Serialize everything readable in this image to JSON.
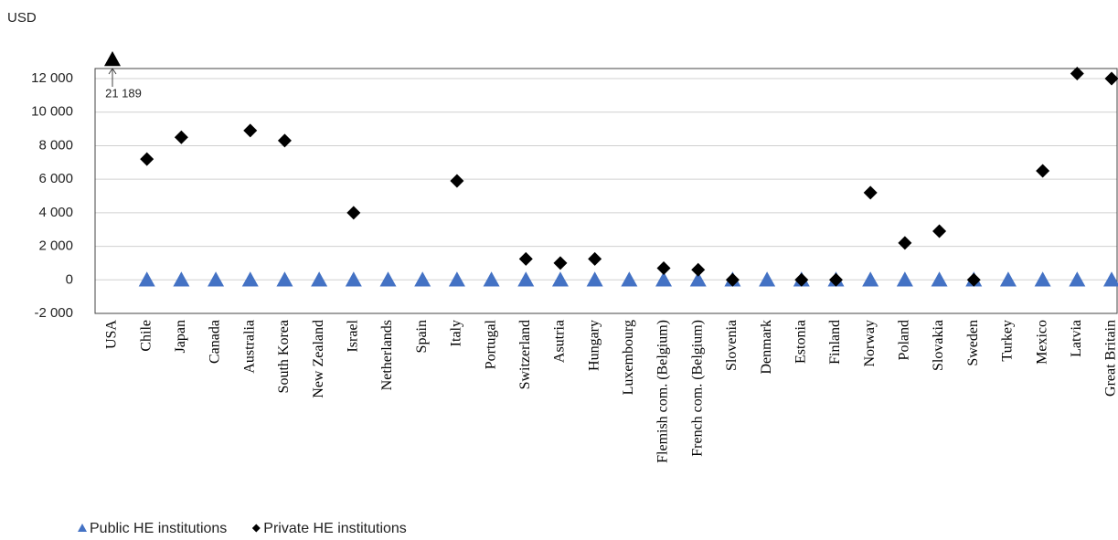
{
  "chart_data": {
    "type": "scatter",
    "y_label": "USD",
    "categories": [
      "USA",
      "Chile",
      "Japan",
      "Canada",
      "Australia",
      "South Korea",
      "New Zealand",
      "Israel",
      "Netherlands",
      "Spain",
      "Italy",
      "Portugal",
      "Switzerland",
      "Asutria",
      "Hungary",
      "Luxembourg",
      "Flemish com. (Belgium)",
      "French com. (Belgium)",
      "Slovenia",
      "Denmark",
      "Estonia",
      "Finland",
      "Norway",
      "Poland",
      "Slovakia",
      "Sweden",
      "Turkey",
      "Mexico",
      "Latvia",
      "Great Britain"
    ],
    "series": [
      {
        "name": "Public HE institutions",
        "color": "#4472c4",
        "marker": "triangle",
        "values": [
          21189,
          0,
          0,
          0,
          0,
          0,
          0,
          0,
          0,
          0,
          0,
          0,
          0,
          0,
          0,
          0,
          0,
          0,
          0,
          0,
          0,
          0,
          0,
          0,
          0,
          0,
          0,
          0,
          0,
          0
        ],
        "value_labels": [
          "21 189",
          null,
          null,
          null,
          null,
          null,
          null,
          null,
          null,
          null,
          null,
          null,
          null,
          null,
          null,
          null,
          null,
          null,
          null,
          null,
          null,
          null,
          null,
          null,
          null,
          null,
          null,
          null,
          null,
          null
        ]
      },
      {
        "name": "Private HE institutions",
        "color": "#000000",
        "marker": "diamond",
        "values": [
          null,
          7200,
          8500,
          null,
          8900,
          8300,
          null,
          4000,
          null,
          null,
          5900,
          null,
          1250,
          1000,
          1250,
          null,
          700,
          600,
          0,
          null,
          0,
          0,
          5200,
          2200,
          2900,
          0,
          null,
          6500,
          12300,
          12000
        ]
      }
    ],
    "ylim": [
      -2000,
      12600
    ],
    "yticks": [
      {
        "value": -2000,
        "label": "-2 000"
      },
      0,
      {
        "value": 2000,
        "label": "2 000"
      },
      {
        "value": 4000,
        "label": "4 000"
      },
      {
        "value": 6000,
        "label": "6 000"
      },
      {
        "value": 8000,
        "label": "8 000"
      },
      {
        "value": 10000,
        "label": "10 000"
      },
      {
        "value": 12000,
        "label": "12 000"
      }
    ],
    "grid": true
  }
}
